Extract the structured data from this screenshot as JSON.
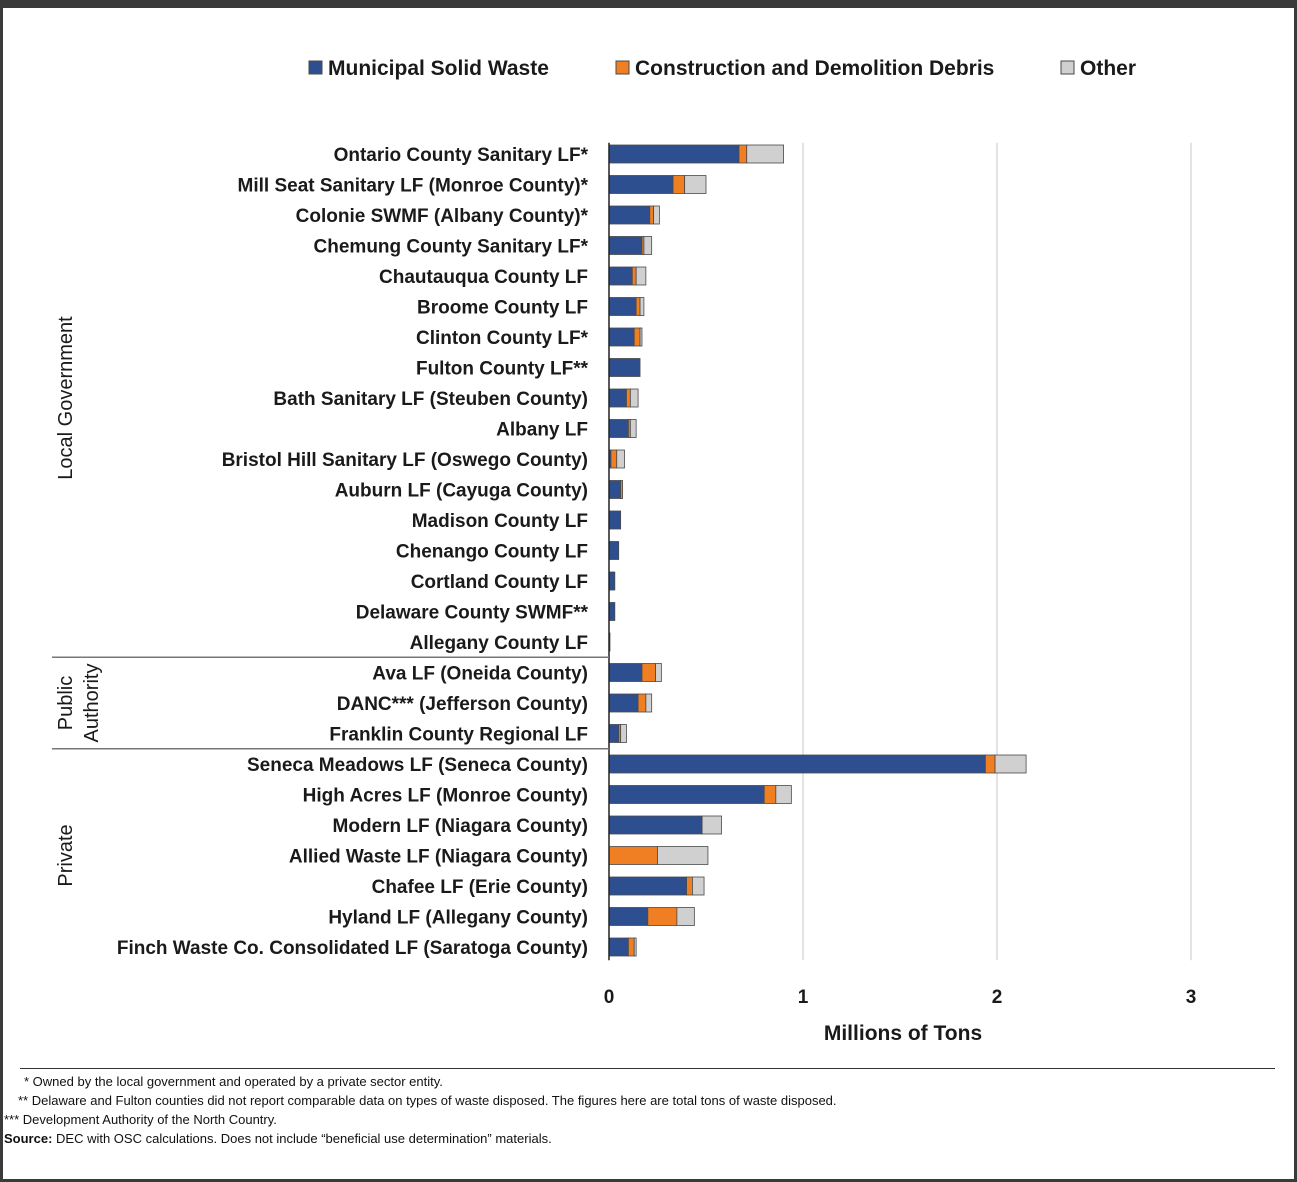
{
  "chart_data": {
    "type": "bar",
    "orientation": "horizontal",
    "stacked": true,
    "xlabel": "Millions of Tons",
    "xlim": [
      0,
      3
    ],
    "xticks": [
      "0",
      "1",
      "2",
      "3"
    ],
    "grid": true,
    "legend_placement": "top",
    "series": [
      {
        "name": "Municipal Solid Waste",
        "color": "#2e4f8f",
        "values": [
          0.67,
          0.33,
          0.21,
          0.17,
          0.12,
          0.14,
          0.13,
          0.16,
          0.09,
          0.1,
          0.01,
          0.06,
          0.06,
          0.05,
          0.03,
          0.03,
          0.005,
          0.17,
          0.15,
          0.05,
          1.94,
          0.8,
          0.48,
          0.0,
          0.4,
          0.2,
          0.1
        ]
      },
      {
        "name": "Construction and Demolition Debris",
        "color": "#f07f24",
        "values": [
          0.04,
          0.06,
          0.02,
          0.01,
          0.02,
          0.02,
          0.03,
          0.0,
          0.02,
          0.01,
          0.03,
          0.01,
          0.0,
          0.0,
          0.0,
          0.0,
          0.0,
          0.07,
          0.04,
          0.01,
          0.05,
          0.06,
          0.0,
          0.25,
          0.03,
          0.15,
          0.03
        ]
      },
      {
        "name": "Other",
        "color": "#d0d0d0",
        "values": [
          0.19,
          0.11,
          0.03,
          0.04,
          0.05,
          0.02,
          0.01,
          0.0,
          0.04,
          0.03,
          0.04,
          0.0,
          0.0,
          0.0,
          0.0,
          0.0,
          0.0,
          0.03,
          0.03,
          0.03,
          0.16,
          0.08,
          0.1,
          0.26,
          0.06,
          0.09,
          0.01
        ]
      }
    ],
    "categories": [
      "Ontario County Sanitary LF*",
      "Mill Seat Sanitary LF (Monroe County)*",
      "Colonie SWMF (Albany County)*",
      "Chemung County Sanitary LF*",
      "Chautauqua County LF",
      "Broome County LF",
      "Clinton County LF*",
      "Fulton County LF**",
      "Bath Sanitary LF (Steuben County)",
      "Albany LF",
      "Bristol Hill Sanitary LF (Oswego County)",
      "Auburn LF (Cayuga County)",
      "Madison County LF",
      "Chenango County LF",
      "Cortland County LF",
      "Delaware County SWMF**",
      "Allegany County LF",
      "Ava LF (Oneida County)",
      "DANC*** (Jefferson County)",
      "Franklin County Regional LF",
      "Seneca Meadows LF (Seneca County)",
      "High Acres LF (Monroe County)",
      "Modern LF (Niagara County)",
      "Allied Waste LF (Niagara County)",
      "Chafee LF (Erie County)",
      "Hyland LF (Allegany County)",
      "Finch Waste Co. Consolidated LF (Saratoga County)"
    ],
    "groups": [
      {
        "name": "Local Government",
        "start": 0,
        "end": 16
      },
      {
        "name": "Public Authority",
        "start": 17,
        "end": 19
      },
      {
        "name": "Private",
        "start": 20,
        "end": 26
      }
    ]
  },
  "footnotes": {
    "note1": "*  Owned by the local government and operated by a private sector entity.",
    "note2": "** Delaware and Fulton counties did not report comparable data on types of waste disposed. The figures here are total tons of waste disposed.",
    "note3": "*** Development Authority of the North Country.",
    "source_label": "Source:",
    "source_text": " DEC with OSC calculations. Does not include “beneficial use determination” materials."
  }
}
